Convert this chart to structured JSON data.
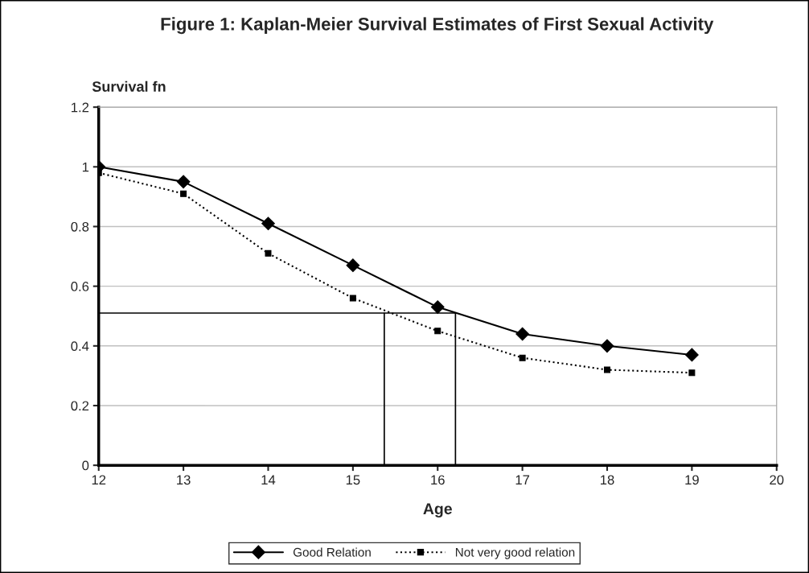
{
  "chart_data": {
    "type": "line",
    "title": "Figure 1: Kaplan-Meier Survival Estimates of First Sexual Activity",
    "xlabel": "Age",
    "ylabel": "Survival fn",
    "x": [
      12,
      13,
      14,
      15,
      16,
      17,
      18,
      19
    ],
    "series": [
      {
        "name": "Good Relation",
        "color": "#000000",
        "marker": "diamond",
        "line_style": "solid",
        "values": [
          1.0,
          0.95,
          0.81,
          0.67,
          0.53,
          0.44,
          0.4,
          0.37
        ]
      },
      {
        "name": "Not very good relation",
        "color": "#000000",
        "marker": "square",
        "line_style": "dotted",
        "values": [
          0.98,
          0.91,
          0.71,
          0.56,
          0.45,
          0.36,
          0.32,
          0.31
        ]
      }
    ],
    "xlim": [
      12,
      20
    ],
    "xticks": [
      12,
      13,
      14,
      15,
      16,
      17,
      18,
      19,
      20
    ],
    "ylim": [
      0,
      1.2
    ],
    "yticks": [
      0,
      0.2,
      0.4,
      0.6,
      0.8,
      1,
      1.2
    ],
    "ref_lines": [
      {
        "axis": "y",
        "value": 0.51,
        "color": "#000000"
      },
      {
        "axis": "x",
        "value": 15.37,
        "color": "#000000"
      },
      {
        "axis": "x",
        "value": 16.21,
        "color": "#000000"
      }
    ],
    "grid": "y",
    "legend": "bottom"
  }
}
